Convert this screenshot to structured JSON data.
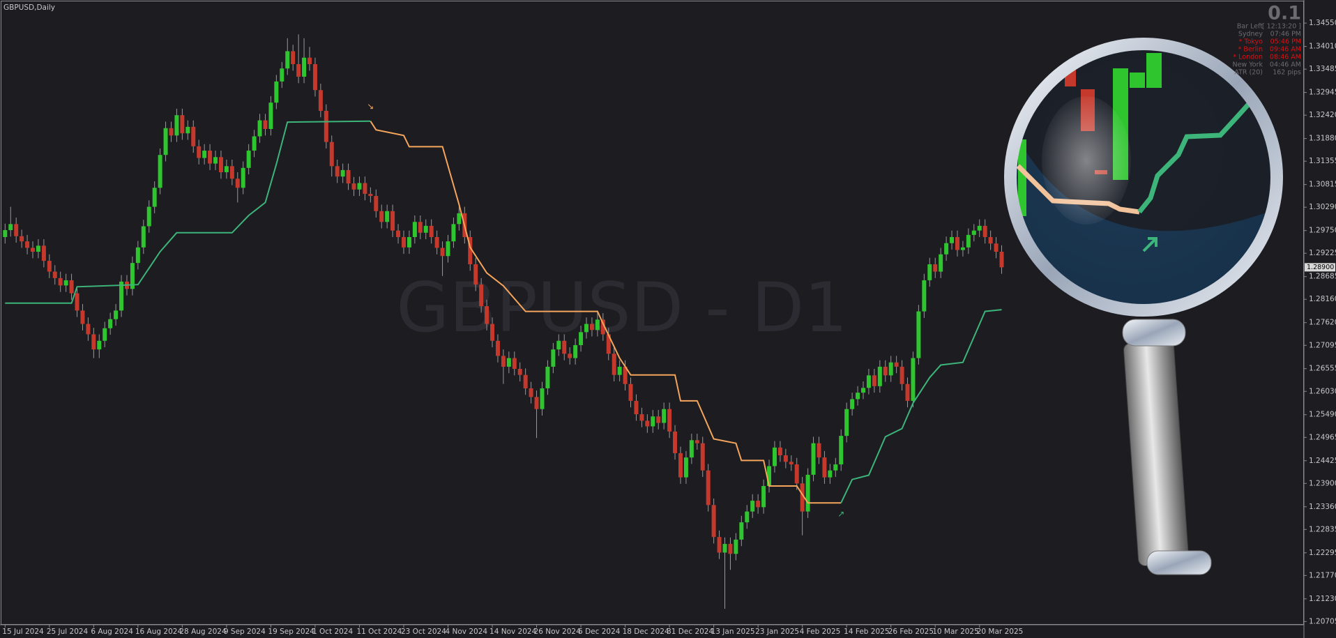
{
  "chart_data": {
    "type": "candlestick",
    "title": "GBPUSD,Daily",
    "watermark": "GBPUSD - D1",
    "ylim": [
      1.2063,
      1.3502
    ],
    "yticks": [
      {
        "value": 1.3455,
        "label": "1.34550"
      },
      {
        "value": 1.3401,
        "label": "1.34010"
      },
      {
        "value": 1.33485,
        "label": "1.33485"
      },
      {
        "value": 1.32945,
        "label": "1.32945"
      },
      {
        "value": 1.3242,
        "label": "1.32420"
      },
      {
        "value": 1.3188,
        "label": "1.31880"
      },
      {
        "value": 1.31355,
        "label": "1.31355"
      },
      {
        "value": 1.30815,
        "label": "1.30815"
      },
      {
        "value": 1.3029,
        "label": "1.30290"
      },
      {
        "value": 1.2975,
        "label": "1.29750"
      },
      {
        "value": 1.29225,
        "label": "1.29225"
      },
      {
        "value": 1.28685,
        "label": "1.28685"
      },
      {
        "value": 1.2816,
        "label": "1.28160"
      },
      {
        "value": 1.2762,
        "label": "1.27620"
      },
      {
        "value": 1.27095,
        "label": "1.27095"
      },
      {
        "value": 1.26555,
        "label": "1.26555"
      },
      {
        "value": 1.2603,
        "label": "1.26030"
      },
      {
        "value": 1.2549,
        "label": "1.25490"
      },
      {
        "value": 1.24965,
        "label": "1.24965"
      },
      {
        "value": 1.24425,
        "label": "1.24425"
      },
      {
        "value": 1.239,
        "label": "1.23900"
      },
      {
        "value": 1.2336,
        "label": "1.23360"
      },
      {
        "value": 1.22835,
        "label": "1.22835"
      },
      {
        "value": 1.22295,
        "label": "1.22295"
      },
      {
        "value": 1.2177,
        "label": "1.21770"
      },
      {
        "value": 1.2123,
        "label": "1.21230"
      },
      {
        "value": 1.20705,
        "label": "1.20705"
      }
    ],
    "xticks": [
      {
        "value": 0,
        "label": "15 Jul 2024"
      },
      {
        "value": 8,
        "label": "25 Jul 2024"
      },
      {
        "value": 16,
        "label": "6 Aug 2024"
      },
      {
        "value": 24,
        "label": "16 Aug 2024"
      },
      {
        "value": 32,
        "label": "28 Aug 2024"
      },
      {
        "value": 40,
        "label": "9 Sep 2024"
      },
      {
        "value": 48,
        "label": "19 Sep 2024"
      },
      {
        "value": 56,
        "label": "1 Oct 2024"
      },
      {
        "value": 64,
        "label": "11 Oct 2024"
      },
      {
        "value": 72,
        "label": "23 Oct 2024"
      },
      {
        "value": 80,
        "label": "4 Nov 2024"
      },
      {
        "value": 88,
        "label": "14 Nov 2024"
      },
      {
        "value": 96,
        "label": "26 Nov 2024"
      },
      {
        "value": 104,
        "label": "6 Dec 2024"
      },
      {
        "value": 112,
        "label": "18 Dec 2024"
      },
      {
        "value": 120,
        "label": "31 Dec 2024"
      },
      {
        "value": 128,
        "label": "13 Jan 2025"
      },
      {
        "value": 136,
        "label": "23 Jan 2025"
      },
      {
        "value": 144,
        "label": "4 Feb 2025"
      },
      {
        "value": 152,
        "label": "14 Feb 2025"
      },
      {
        "value": 160,
        "label": "26 Feb 2025"
      },
      {
        "value": 168,
        "label": "10 Mar 2025"
      },
      {
        "value": 176,
        "label": "20 Mar 2025"
      }
    ],
    "up_color": "#2fc52f",
    "down_color": "#c4392c",
    "candles": {
      "open": [
        1.296,
        1.2976,
        1.299,
        1.2962,
        1.295,
        1.2935,
        1.2926,
        1.294,
        1.2905,
        1.288,
        1.2865,
        1.2848,
        1.286,
        1.283,
        1.279,
        1.2759,
        1.2735,
        1.27,
        1.272,
        1.2749,
        1.277,
        1.279,
        1.2857,
        1.284,
        1.29,
        1.2936,
        1.2985,
        1.303,
        1.3074,
        1.315,
        1.3212,
        1.3195,
        1.3242,
        1.32,
        1.3215,
        1.317,
        1.3143,
        1.316,
        1.313,
        1.3145,
        1.311,
        1.3124,
        1.3095,
        1.3074,
        1.312,
        1.316,
        1.3193,
        1.323,
        1.321,
        1.3271,
        1.332,
        1.335,
        1.339,
        1.336,
        1.3331,
        1.3375,
        1.336,
        1.33,
        1.3252,
        1.318,
        1.3124,
        1.31,
        1.3115,
        1.3084,
        1.307,
        1.3085,
        1.306,
        1.3055,
        1.302,
        1.2995,
        1.302,
        1.2975,
        1.296,
        1.2936,
        1.296,
        1.2995,
        1.297,
        1.2986,
        1.296,
        1.2935,
        1.2916,
        1.295,
        1.299,
        1.3015,
        1.296,
        1.2897,
        1.285,
        1.28,
        1.2759,
        1.272,
        1.2685,
        1.266,
        1.268,
        1.2655,
        1.2641,
        1.261,
        1.259,
        1.2562,
        1.261,
        1.266,
        1.27,
        1.272,
        1.269,
        1.268,
        1.271,
        1.274,
        1.2759,
        1.2745,
        1.2769,
        1.2735,
        1.269,
        1.2641,
        1.266,
        1.262,
        1.2581,
        1.255,
        1.2535,
        1.2522,
        1.2545,
        1.253,
        1.2562,
        1.251,
        1.246,
        1.2404,
        1.245,
        1.249,
        1.2483,
        1.242,
        1.234,
        1.2266,
        1.223,
        1.225,
        1.2227,
        1.226,
        1.23,
        1.2325,
        1.235,
        1.2335,
        1.2384,
        1.243,
        1.2473,
        1.2455,
        1.244,
        1.2434,
        1.239,
        1.2325,
        1.241,
        1.2483,
        1.245,
        1.2404,
        1.242,
        1.2434,
        1.25,
        1.2562,
        1.2585,
        1.26,
        1.2611,
        1.264,
        1.2615,
        1.266,
        1.264,
        1.267,
        1.266,
        1.262,
        1.2581,
        1.268,
        1.2788,
        1.286,
        1.2897,
        1.288,
        1.292,
        1.2946,
        1.296,
        1.293,
        1.2936,
        1.2965,
        1.2975,
        1.2986,
        1.296,
        1.2945,
        1.2926
      ],
      "high": [
        1.2991,
        1.303,
        1.3005,
        1.2977,
        1.2965,
        1.295,
        1.2955,
        1.2955,
        1.292,
        1.2895,
        1.288,
        1.2875,
        1.2875,
        1.2845,
        1.2805,
        1.2774,
        1.275,
        1.2735,
        1.2764,
        1.2785,
        1.2805,
        1.2872,
        1.2872,
        1.2915,
        1.2951,
        1.3,
        1.3045,
        1.3089,
        1.3165,
        1.3227,
        1.3227,
        1.3257,
        1.3257,
        1.323,
        1.323,
        1.3185,
        1.3175,
        1.3175,
        1.316,
        1.316,
        1.3139,
        1.3139,
        1.311,
        1.3135,
        1.3175,
        1.3208,
        1.3245,
        1.3245,
        1.3286,
        1.3335,
        1.3365,
        1.342,
        1.3405,
        1.3429,
        1.342,
        1.34,
        1.3375,
        1.3315,
        1.3267,
        1.3195,
        1.3139,
        1.313,
        1.313,
        1.3099,
        1.31,
        1.31,
        1.3075,
        1.307,
        1.3035,
        1.3035,
        1.3035,
        1.299,
        1.2975,
        1.2975,
        1.301,
        1.301,
        1.3001,
        1.3001,
        1.2975,
        1.295,
        1.2965,
        1.3005,
        1.303,
        1.303,
        1.2975,
        1.2912,
        1.2865,
        1.2815,
        1.2774,
        1.2735,
        1.27,
        1.2695,
        1.2695,
        1.267,
        1.2656,
        1.2625,
        1.2605,
        1.2625,
        1.2675,
        1.2715,
        1.2735,
        1.2735,
        1.2705,
        1.2725,
        1.2755,
        1.2774,
        1.2774,
        1.279,
        1.2784,
        1.275,
        1.2705,
        1.2675,
        1.2675,
        1.2635,
        1.2596,
        1.2565,
        1.255,
        1.256,
        1.256,
        1.2577,
        1.2577,
        1.2525,
        1.2475,
        1.2465,
        1.2505,
        1.2505,
        1.2498,
        1.2435,
        1.2355,
        1.2281,
        1.2265,
        1.2265,
        1.2275,
        1.2315,
        1.234,
        1.2365,
        1.2365,
        1.2399,
        1.2445,
        1.2488,
        1.2488,
        1.247,
        1.2455,
        1.2449,
        1.2405,
        1.2425,
        1.2498,
        1.2498,
        1.2465,
        1.2435,
        1.2449,
        1.2515,
        1.2577,
        1.26,
        1.2615,
        1.2626,
        1.2655,
        1.2655,
        1.2675,
        1.2675,
        1.2685,
        1.2685,
        1.2675,
        1.2635,
        1.2695,
        1.2803,
        1.2875,
        1.2912,
        1.2912,
        1.2935,
        1.2961,
        1.2975,
        1.2975,
        1.2951,
        1.298,
        1.299,
        1.3001,
        1.3001,
        1.2975,
        1.296,
        1.2941
      ],
      "low": [
        1.2945,
        1.2961,
        1.2947,
        1.2935,
        1.292,
        1.2911,
        1.2911,
        1.289,
        1.2865,
        1.285,
        1.2833,
        1.2833,
        1.2815,
        1.2775,
        1.2744,
        1.272,
        1.268,
        1.268,
        1.2705,
        1.2734,
        1.2755,
        1.2775,
        1.2825,
        1.2825,
        1.2885,
        1.2921,
        1.297,
        1.3015,
        1.3059,
        1.3135,
        1.318,
        1.318,
        1.3185,
        1.3185,
        1.3155,
        1.3128,
        1.3128,
        1.3115,
        1.3115,
        1.3095,
        1.3095,
        1.308,
        1.304,
        1.3059,
        1.3105,
        1.3145,
        1.3178,
        1.3195,
        1.3195,
        1.3256,
        1.3305,
        1.3335,
        1.3345,
        1.3316,
        1.3316,
        1.3345,
        1.3285,
        1.3237,
        1.3165,
        1.31,
        1.3085,
        1.3085,
        1.3069,
        1.3055,
        1.3055,
        1.3045,
        1.304,
        1.3005,
        1.298,
        1.298,
        1.296,
        1.2945,
        1.2921,
        1.2921,
        1.2945,
        1.2955,
        1.2955,
        1.2945,
        1.292,
        1.287,
        1.2901,
        1.2935,
        1.2975,
        1.2945,
        1.2882,
        1.2835,
        1.2785,
        1.2744,
        1.2705,
        1.267,
        1.262,
        1.2645,
        1.264,
        1.2626,
        1.2595,
        1.2575,
        1.2495,
        1.2547,
        1.2595,
        1.2645,
        1.2685,
        1.2675,
        1.2665,
        1.2665,
        1.2695,
        1.2725,
        1.273,
        1.273,
        1.272,
        1.2675,
        1.2626,
        1.2626,
        1.2605,
        1.2566,
        1.2535,
        1.252,
        1.2507,
        1.2507,
        1.2515,
        1.2515,
        1.2495,
        1.2445,
        1.2389,
        1.2389,
        1.2435,
        1.2468,
        1.2405,
        1.2325,
        1.2251,
        1.2215,
        1.21,
        1.219,
        1.2212,
        1.2245,
        1.2285,
        1.231,
        1.232,
        1.232,
        1.2369,
        1.2415,
        1.244,
        1.2425,
        1.2419,
        1.2375,
        1.227,
        1.231,
        1.2395,
        1.2435,
        1.2389,
        1.2389,
        1.2405,
        1.2419,
        1.2485,
        1.2547,
        1.257,
        1.2585,
        1.2596,
        1.26,
        1.26,
        1.2625,
        1.2625,
        1.2645,
        1.2605,
        1.2566,
        1.2566,
        1.2665,
        1.2773,
        1.2845,
        1.2865,
        1.2865,
        1.2905,
        1.2931,
        1.2915,
        1.2915,
        1.2921,
        1.295,
        1.296,
        1.2945,
        1.293,
        1.2911,
        1.2875
      ],
      "close": [
        1.2976,
        1.299,
        1.2962,
        1.295,
        1.2935,
        1.2926,
        1.294,
        1.2905,
        1.288,
        1.2865,
        1.2848,
        1.286,
        1.283,
        1.279,
        1.2759,
        1.2735,
        1.27,
        1.272,
        1.2749,
        1.277,
        1.279,
        1.2857,
        1.284,
        1.29,
        1.2936,
        1.2985,
        1.303,
        1.3074,
        1.315,
        1.3212,
        1.3195,
        1.3242,
        1.32,
        1.3215,
        1.317,
        1.3143,
        1.316,
        1.313,
        1.3145,
        1.311,
        1.3124,
        1.3095,
        1.3074,
        1.312,
        1.316,
        1.3193,
        1.323,
        1.321,
        1.3271,
        1.332,
        1.335,
        1.339,
        1.336,
        1.3331,
        1.3375,
        1.336,
        1.33,
        1.3252,
        1.318,
        1.3124,
        1.31,
        1.3115,
        1.3084,
        1.307,
        1.3085,
        1.306,
        1.3055,
        1.302,
        1.2995,
        1.302,
        1.2975,
        1.296,
        1.2936,
        1.296,
        1.2995,
        1.297,
        1.2986,
        1.296,
        1.2935,
        1.2916,
        1.295,
        1.299,
        1.3015,
        1.296,
        1.2897,
        1.285,
        1.28,
        1.2759,
        1.272,
        1.2685,
        1.266,
        1.268,
        1.2655,
        1.2641,
        1.261,
        1.259,
        1.2562,
        1.261,
        1.266,
        1.27,
        1.272,
        1.269,
        1.268,
        1.271,
        1.274,
        1.2759,
        1.2745,
        1.2769,
        1.2735,
        1.269,
        1.2641,
        1.266,
        1.262,
        1.2581,
        1.255,
        1.2535,
        1.2522,
        1.2545,
        1.253,
        1.2562,
        1.251,
        1.246,
        1.2404,
        1.245,
        1.249,
        1.2483,
        1.242,
        1.234,
        1.2266,
        1.223,
        1.225,
        1.2227,
        1.226,
        1.23,
        1.2325,
        1.235,
        1.2335,
        1.2384,
        1.243,
        1.2473,
        1.2455,
        1.244,
        1.2434,
        1.239,
        1.2325,
        1.241,
        1.2483,
        1.245,
        1.2404,
        1.242,
        1.2434,
        1.25,
        1.2562,
        1.2585,
        1.26,
        1.2611,
        1.264,
        1.2615,
        1.266,
        1.264,
        1.267,
        1.266,
        1.262,
        1.2581,
        1.268,
        1.2788,
        1.286,
        1.2897,
        1.288,
        1.292,
        1.2946,
        1.296,
        1.293,
        1.2936,
        1.2965,
        1.2975,
        1.2986,
        1.296,
        1.2945,
        1.2926,
        1.289
      ]
    },
    "lines": [
      {
        "color": "#3db57a",
        "x": [
          0,
          12,
          13,
          24,
          28,
          31,
          41,
          44,
          47,
          49,
          51,
          66
        ],
        "values": [
          1.2807,
          1.2807,
          1.2845,
          1.285,
          1.2926,
          1.297,
          1.297,
          1.301,
          1.304,
          1.3129,
          1.3226,
          1.3228
        ]
      },
      {
        "color": "#f5a55c",
        "x": [
          66,
          67,
          72,
          73,
          79,
          82,
          84,
          87,
          90,
          94,
          107,
          108,
          111,
          113,
          121,
          122,
          125,
          128,
          132,
          133,
          137,
          138,
          143,
          145,
          151
        ],
        "values": [
          1.3228,
          1.3208,
          1.3195,
          1.3169,
          1.3169,
          1.3035,
          1.2936,
          1.2877,
          1.2847,
          1.2788,
          1.2788,
          1.276,
          1.268,
          1.2641,
          1.2641,
          1.2581,
          1.2581,
          1.2493,
          1.2483,
          1.2443,
          1.2443,
          1.2384,
          1.2384,
          1.2345,
          1.2345
        ]
      },
      {
        "color": "#3db57a",
        "x": [
          151,
          153,
          156,
          159,
          162,
          164,
          167,
          169,
          173,
          175,
          177,
          180
        ],
        "values": [
          1.2345,
          1.2399,
          1.2409,
          1.2498,
          1.2517,
          1.2576,
          1.2635,
          1.2664,
          1.267,
          1.2729,
          1.2788,
          1.2792
        ]
      }
    ],
    "markers": [
      {
        "text": "↘",
        "color": "#f5a55c",
        "x": 66,
        "value": 1.3262
      },
      {
        "text": "↗",
        "color": "#3db57a",
        "x": 151,
        "value": 1.2319
      }
    ],
    "current_price": {
      "value": 1.289,
      "label": "1.28900"
    }
  },
  "panel": {
    "big": "0.1",
    "rows": [
      {
        "label": "Bar Left",
        "value": "[ 12:13:20 ]",
        "color": "#6b6b70"
      },
      {
        "label": "Sydney",
        "value": "07:46 PM",
        "color": "#6b6b70"
      },
      {
        "label": "* Tokyo",
        "value": "05:46 PM",
        "color": "#e01010"
      },
      {
        "label": "* Berlin",
        "value": "09:46 AM",
        "color": "#e01010"
      },
      {
        "label": "* London",
        "value": "08:46 AM",
        "color": "#e01010"
      },
      {
        "label": "New York",
        "value": "04:46 AM",
        "color": "#6b6b70"
      },
      {
        "label": "ATR (20)",
        "value": "162 pips",
        "color": "#6b6b70"
      }
    ]
  }
}
